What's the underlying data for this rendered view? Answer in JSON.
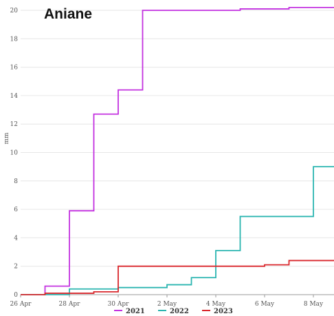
{
  "chart_data": {
    "type": "line",
    "title": "Aniane",
    "ylabel": "mm",
    "xlabel": "",
    "ylim": [
      0,
      20
    ],
    "y_ticks": [
      "0",
      "2",
      "4",
      "6",
      "8",
      "10",
      "12",
      "14",
      "16",
      "18",
      "20"
    ],
    "x_ticks": [
      "26 Apr",
      "28 Apr",
      "30 Apr",
      "2 May",
      "4 May",
      "6 May",
      "8 May"
    ],
    "grid": true,
    "legend_position": "bottom",
    "series": [
      {
        "name": "2021",
        "color": "#c331e0",
        "step": "after",
        "points": [
          [
            "27 Apr",
            0
          ],
          [
            "27 Apr",
            0.6
          ],
          [
            "28 Apr",
            5.9
          ],
          [
            "29 Apr",
            12.7
          ],
          [
            "30 Apr",
            14.4
          ],
          [
            "1 May",
            20.0
          ],
          [
            "5 May",
            20.1
          ],
          [
            "7 May",
            20.2
          ],
          [
            "9 May",
            20.2
          ]
        ]
      },
      {
        "name": "2022",
        "color": "#2ab5b0",
        "step": "after",
        "points": [
          [
            "26 Apr",
            0
          ],
          [
            "28 Apr",
            0.4
          ],
          [
            "30 Apr",
            0.5
          ],
          [
            "2 May",
            0.7
          ],
          [
            "3 May",
            1.2
          ],
          [
            "4 May",
            3.1
          ],
          [
            "5 May",
            5.5
          ],
          [
            "8 May",
            9.0
          ],
          [
            "9 May",
            9.0
          ]
        ]
      },
      {
        "name": "2023",
        "color": "#d9262b",
        "step": "after",
        "points": [
          [
            "26 Apr",
            0
          ],
          [
            "27 Apr",
            0.1
          ],
          [
            "29 Apr",
            0.2
          ],
          [
            "30 Apr",
            2.0
          ],
          [
            "6 May",
            2.1
          ],
          [
            "7 May",
            2.4
          ],
          [
            "9 May",
            2.4
          ]
        ]
      }
    ]
  }
}
